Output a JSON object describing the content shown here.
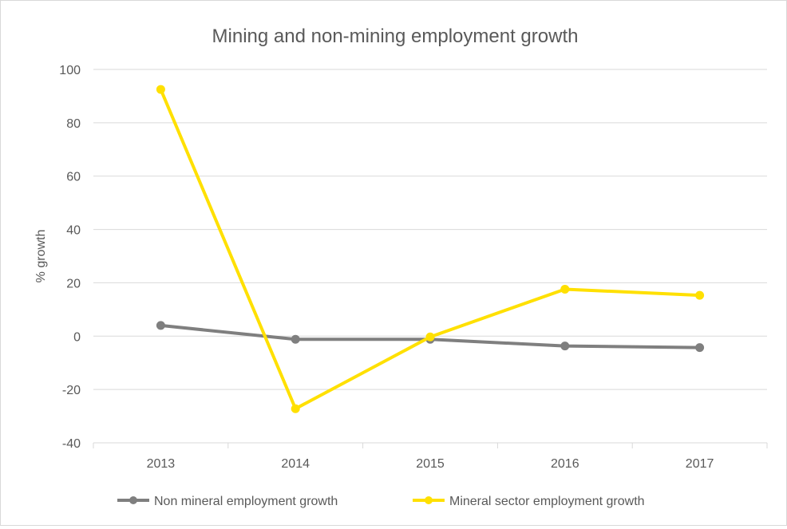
{
  "chart_data": {
    "type": "line",
    "title": "Mining and non-mining employment growth",
    "ylabel": "% growth",
    "xlabel": "",
    "categories": [
      "2013",
      "2014",
      "2015",
      "2016",
      "2017"
    ],
    "ylim": [
      -40,
      100
    ],
    "yticks": [
      -40,
      -20,
      0,
      20,
      40,
      60,
      80,
      100
    ],
    "grid": true,
    "legend": "bottom",
    "series": [
      {
        "name": "Non mineral employment growth",
        "color": "#7f7f7f",
        "values": [
          4,
          -1.2,
          -1.2,
          -3.7,
          -4.3
        ]
      },
      {
        "name": "Mineral sector employment growth",
        "color": "#ffe000",
        "values": [
          92.5,
          -27.2,
          -0.3,
          17.6,
          15.3
        ]
      }
    ]
  }
}
